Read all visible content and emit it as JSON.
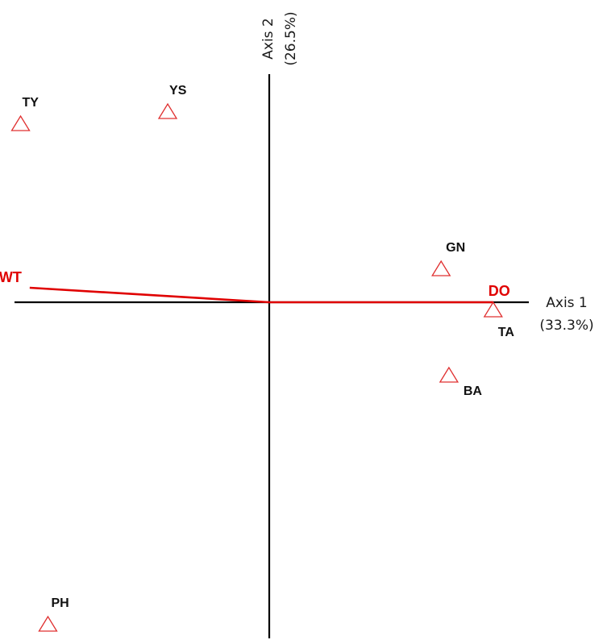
{
  "chart_data": {
    "type": "scatter",
    "title": "",
    "xlabel": "Axis 1",
    "xlabel_pct": "(33.3%)",
    "ylabel": "Axis 2",
    "ylabel_pct": "(26.5%)",
    "xlim": [
      -1.0,
      1.0
    ],
    "ylim": [
      -1.35,
      1.0
    ],
    "grid": false,
    "legend": "none",
    "marker_color": "#e03030",
    "vector_color": "#e00000",
    "sites": [
      {
        "label": "TY",
        "x": -0.955,
        "y": 0.74
      },
      {
        "label": "YS",
        "x": -0.39,
        "y": 0.79
      },
      {
        "label": "GN",
        "x": 0.66,
        "y": 0.14
      },
      {
        "label": "TA",
        "x": 0.86,
        "y": -0.03
      },
      {
        "label": "BA",
        "x": 0.69,
        "y": -0.3
      },
      {
        "label": "PH",
        "x": -0.85,
        "y": -1.33
      }
    ],
    "vectors": [
      {
        "label": "WT",
        "x": -0.92,
        "y": 0.06
      },
      {
        "label": "DO",
        "x": 0.86,
        "y": 0.0
      }
    ]
  }
}
